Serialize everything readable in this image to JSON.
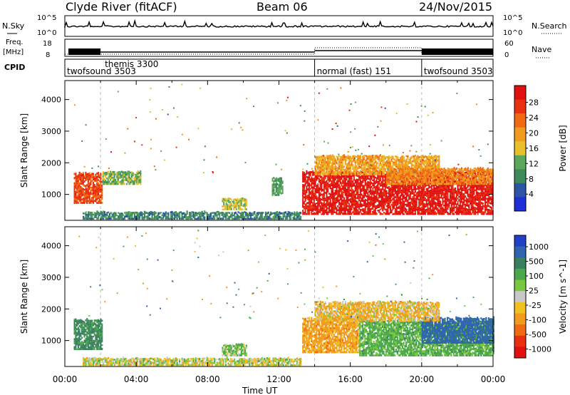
{
  "header": {
    "station": "Clyde River (fitACF)",
    "beam": "Beam 06",
    "date": "24/Nov/2015"
  },
  "noise_panel": {
    "left_label": "N.Sky",
    "right_label": "N.Search",
    "ticks_left": [
      "10^5",
      "10^0"
    ],
    "ticks_right": [
      "10^5",
      "10^0"
    ]
  },
  "freq_panel": {
    "left_label_1": "Freq.",
    "left_label_2": "[MHz]",
    "right_label": "Nave",
    "ticks_left": [
      "18",
      "8"
    ],
    "ticks_right": [
      "60",
      "0"
    ]
  },
  "cpid_panel": {
    "label": "CPID",
    "segments": [
      {
        "name": "twofsound 3503",
        "start_h": 0
      },
      {
        "name": "themis 3300",
        "start_h": 2.0
      },
      {
        "name": "normal (fast) 151",
        "start_h": 14.0
      },
      {
        "name": "twofsound 3503",
        "start_h": 20.0
      }
    ]
  },
  "colors": {
    "power_scale": [
      "#1f2fd8",
      "#2c55a6",
      "#3e8a5b",
      "#5ba85a",
      "#e8c12a",
      "#f09a1e",
      "#f06a14",
      "#e8320f",
      "#e01010"
    ],
    "velocity_scale": [
      "#2040c8",
      "#2f64b0",
      "#3a8060",
      "#4aa84a",
      "#7ac840",
      "#c8c8c8",
      "#f0c020",
      "#f09a1e",
      "#f06a14",
      "#e83010",
      "#e01010"
    ]
  },
  "chart_data": [
    {
      "type": "heatmap",
      "title": "",
      "xlabel": "Time UT",
      "ylabel": "Slant Range [km]",
      "xlim": [
        0,
        24
      ],
      "ylim": [
        180,
        4600
      ],
      "x_tick_labels": [
        "00:00",
        "04:00",
        "08:00",
        "12:00",
        "16:00",
        "20:00",
        "00:00"
      ],
      "y_tick_labels": [
        "1000",
        "2000",
        "3000",
        "4000"
      ],
      "colorbar": {
        "label": "Power [dB]",
        "tick_labels": [
          "4",
          "8",
          "12",
          "16",
          "20",
          "24",
          "28"
        ],
        "range": [
          0,
          30
        ]
      },
      "regions": [
        {
          "t0": 0.5,
          "t1": 2.1,
          "r0": 700,
          "r1": 1650,
          "value": 24
        },
        {
          "t0": 2.1,
          "t1": 4.2,
          "r0": 1300,
          "r1": 1700,
          "value": 12
        },
        {
          "t0": 1.0,
          "t1": 13.2,
          "r0": 200,
          "r1": 420,
          "value": 8
        },
        {
          "t0": 8.8,
          "t1": 10.2,
          "r0": 500,
          "r1": 850,
          "value": 14
        },
        {
          "t0": 11.6,
          "t1": 12.2,
          "r0": 950,
          "r1": 1500,
          "value": 10
        },
        {
          "t0": 13.3,
          "t1": 24.0,
          "r0": 350,
          "r1": 1700,
          "value": 28
        },
        {
          "t0": 14.0,
          "t1": 21.0,
          "r0": 1600,
          "r1": 2200,
          "value": 18
        },
        {
          "t0": 18.0,
          "t1": 24.0,
          "r0": 1300,
          "r1": 1800,
          "value": 20
        }
      ]
    },
    {
      "type": "heatmap",
      "title": "",
      "xlabel": "Time UT",
      "ylabel": "Slant Range [km]",
      "xlim": [
        0,
        24
      ],
      "ylim": [
        180,
        4600
      ],
      "x_tick_labels": [
        "00:00",
        "04:00",
        "08:00",
        "12:00",
        "16:00",
        "20:00",
        "00:00"
      ],
      "y_tick_labels": [
        "1000",
        "2000",
        "3000",
        "4000"
      ],
      "colorbar": {
        "label": "Velocity [m s^-1]",
        "tick_labels": [
          "1000",
          "500",
          "100",
          "25",
          "-25",
          "-100",
          "-500",
          "-1000"
        ]
      },
      "regions": [
        {
          "t0": 0.5,
          "t1": 2.1,
          "r0": 700,
          "r1": 1650,
          "value": 300
        },
        {
          "t0": 1.0,
          "t1": 13.2,
          "r0": 200,
          "r1": 420,
          "value": 0
        },
        {
          "t0": 8.8,
          "t1": 10.2,
          "r0": 500,
          "r1": 850,
          "value": 80
        },
        {
          "t0": 13.3,
          "t1": 16.5,
          "r0": 600,
          "r1": 1700,
          "value": -150
        },
        {
          "t0": 16.5,
          "t1": 24.0,
          "r0": 500,
          "r1": 1600,
          "value": 150
        },
        {
          "t0": 20.0,
          "t1": 24.0,
          "r0": 900,
          "r1": 1700,
          "value": 600
        },
        {
          "t0": 14.0,
          "t1": 21.0,
          "r0": 1600,
          "r1": 2200,
          "value": -80
        }
      ]
    }
  ]
}
